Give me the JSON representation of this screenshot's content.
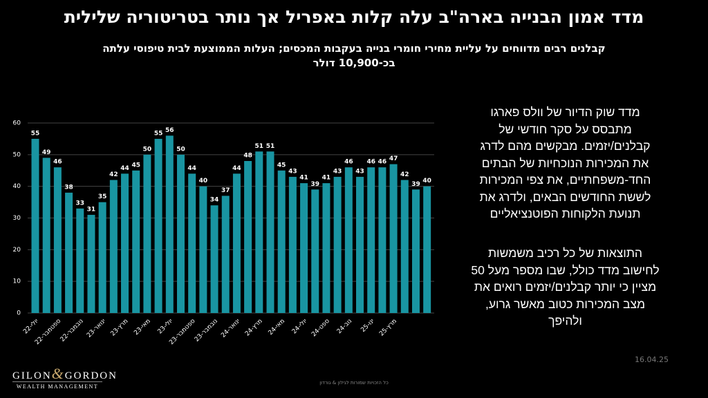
{
  "slide": {
    "title": "מדד אמון הבנייה בארה\"ב עלה קלות באפריל אך נותר בטריטוריה שלילית",
    "subtitle": [
      "קבלנים רבים מדווחים על עליית מחירי חומרי בנייה בעקבות המכסים; העלות הממוצעת לבית טיפוסי עלתה",
      "בכ-10,900 דולר"
    ],
    "paragraphs": [
      [
        "מדד שוק הדיור של וולס פארגו",
        "מתבסס על סקר חודשי של",
        "קבלנים/יזמים. מבקשים מהם לדרג",
        "את  המכירות הנוכחיות של הבתים",
        "החד-משפחתיים, את צפי המכירות",
        "לששת החודשים הבאים, ולדרג את",
        "תנועת הלקוחות הפוטנציאליים"
      ],
      [
        "התוצאות של כל רכיב משמשות",
        "לחישוב מדד כולל, שבו מספר מעל 50",
        "מציין כי יותר קבלנים/יזמים רואים את",
        "מצב  המכירות כטוב מאשר גרוע,",
        "ולהיפך"
      ]
    ],
    "date": "16.04.25",
    "logo": [
      "GILON",
      "&",
      "GORDON",
      "WEALTH MANAGEMENT"
    ],
    "footer": "כל הזכויות שמורות לגילון & גורדון"
  },
  "chart_data": {
    "type": "bar",
    "color": "#1995a2",
    "grid": true,
    "categories": [
      "יולי-22",
      null,
      "ספטמבר-22",
      null,
      "נובמבר-22",
      null,
      "ינואר-23",
      null,
      "מרץ-23",
      null,
      "מאי-23",
      null,
      "יולי-23",
      null,
      "ספטמבר-23",
      null,
      "נובמבר-23",
      null,
      "ינואר-24",
      null,
      "מרץ-24",
      null,
      "מאי-24",
      null,
      "יולי-24",
      null,
      "ספט-24",
      null,
      "נוב-24",
      null,
      "ינו-25",
      null,
      "מרץ-25",
      null,
      null,
      null
    ],
    "values": [
      55,
      49,
      46,
      38,
      33,
      31,
      35,
      42,
      44,
      45,
      50,
      55,
      56,
      50,
      44,
      40,
      34,
      37,
      44,
      48,
      51,
      51,
      45,
      43,
      41,
      39,
      41,
      43,
      46,
      43,
      46,
      46,
      47,
      42,
      39,
      40
    ],
    "ylim": [
      0,
      60
    ],
    "yticks": [
      0,
      10,
      20,
      30,
      40,
      50,
      60
    ]
  }
}
